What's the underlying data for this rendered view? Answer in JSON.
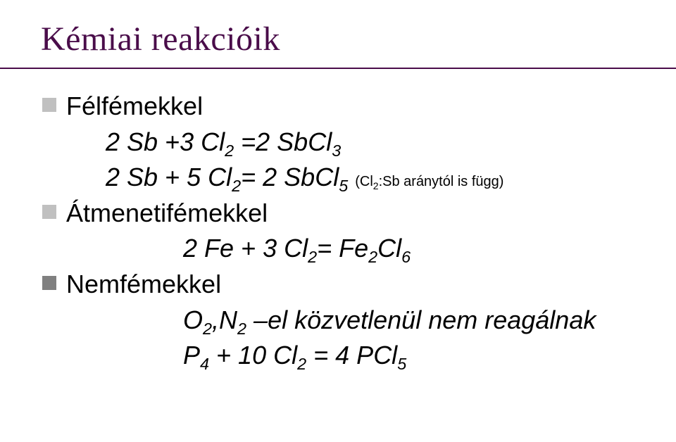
{
  "title": "Kémiai reakcióik",
  "sections": [
    {
      "label": "Félfémekkel",
      "equations_html": [
        "2 Sb +3 Cl<sub>2</sub> =2 SbCl<sub>3</sub>",
        "2 Sb + 5 Cl<sub>2</sub>= 2 SbCl<sub>5</sub> <span class=\"note\">(Cl<sub>2</sub>:Sb aránytól is függ)</span>"
      ],
      "center": false,
      "bullet_dark": false
    },
    {
      "label": "Átmenetifémekkel",
      "equations_html": [
        "2 Fe + 3 Cl<sub>2</sub>= Fe<sub>2</sub>Cl<sub>6</sub>"
      ],
      "center": true,
      "bullet_dark": false
    },
    {
      "label": "Nemfémekkel",
      "equations_html": [
        "O<sub>2</sub>,N<sub>2</sub> –el közvetlenül nem reagálnak",
        "P<sub>4</sub> + 10 Cl<sub>2</sub> = 4 PCl<sub>5</sub>"
      ],
      "center": true,
      "bullet_dark": true
    }
  ],
  "colors": {
    "title": "#4a0d4a",
    "rule": "#4a0d4a",
    "bullet": "#c0c0c0",
    "bullet_dark": "#808080",
    "text": "#000000",
    "background": "#ffffff"
  },
  "fonts": {
    "title_family": "Times New Roman",
    "title_size_pt": 36,
    "body_family": "Arial",
    "body_size_pt": 27,
    "note_size_pt": 15
  }
}
